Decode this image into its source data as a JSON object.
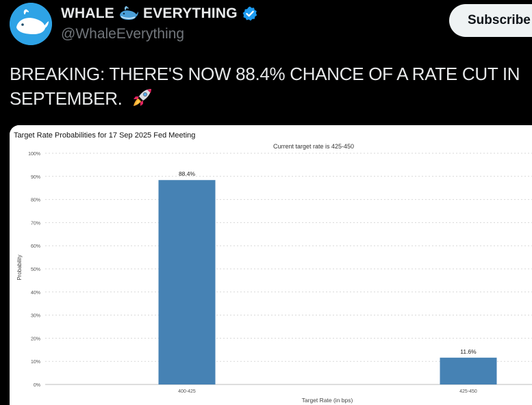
{
  "account": {
    "display_name_part1": "WHALE",
    "display_name_part2": "EVERYTHING",
    "handle": "@WhaleEverything",
    "avatar_icon": "whale-avatar",
    "name_emoji": "whale-emoji",
    "verified_icon": "verified-badge-icon",
    "verified_color": "#1d9bf0"
  },
  "actions": {
    "subscribe_label": "Subscribe"
  },
  "tweet": {
    "text": "BREAKING: THERE'S NOW 88.4% CHANCE OF A RATE CUT IN SEPTEMBER.",
    "emoji": "rocket-emoji"
  },
  "chart_data": {
    "type": "bar",
    "title": "Target Rate Probabilities for 17 Sep 2025 Fed Meeting",
    "subtitle": "Current target rate is 425-450",
    "xlabel": "Target Rate (in bps)",
    "ylabel": "Probability",
    "categories": [
      "400-425",
      "425-450"
    ],
    "values": [
      88.4,
      11.6
    ],
    "data_labels": [
      "88.4%",
      "11.6%"
    ],
    "ylim": [
      0,
      100
    ],
    "yticks": [
      "0%",
      "10%",
      "20%",
      "30%",
      "40%",
      "50%",
      "60%",
      "70%",
      "80%",
      "90%",
      "100%"
    ],
    "grid": true,
    "bar_color": "#4682b4"
  }
}
